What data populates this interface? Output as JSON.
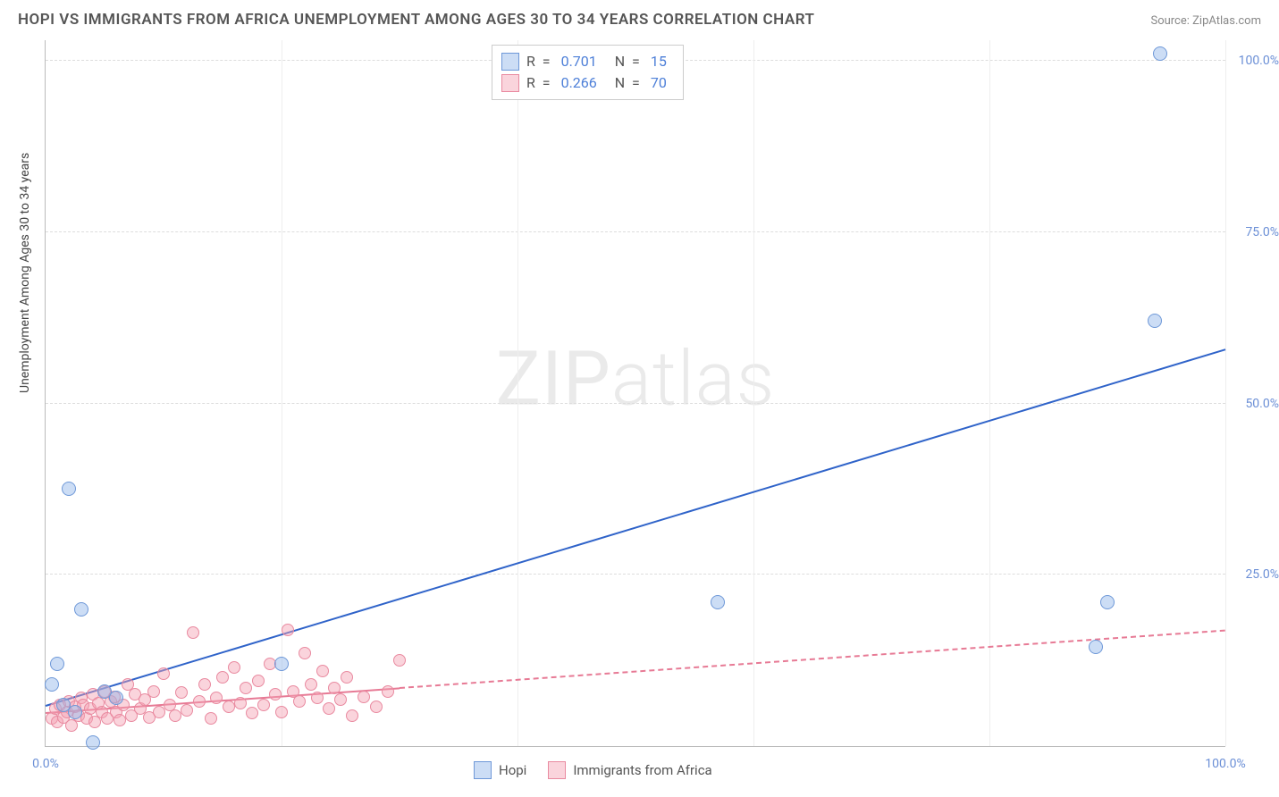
{
  "title": "HOPI VS IMMIGRANTS FROM AFRICA UNEMPLOYMENT AMONG AGES 30 TO 34 YEARS CORRELATION CHART",
  "source": "Source: ZipAtlas.com",
  "ylabel": "Unemployment Among Ages 30 to 34 years",
  "watermark_a": "ZIP",
  "watermark_b": "atlas",
  "chart": {
    "type": "scatter",
    "xlim": [
      0,
      100
    ],
    "ylim": [
      0,
      103
    ],
    "x_ticks": [
      0,
      20,
      40,
      60,
      80,
      100
    ],
    "y_ticks": [
      25,
      50,
      75,
      100
    ],
    "x_tick_labels": {
      "0": "0.0%",
      "100": "100.0%"
    },
    "y_tick_labels": {
      "25": "25.0%",
      "50": "50.0%",
      "75": "75.0%",
      "100": "100.0%"
    },
    "background_color": "#ffffff",
    "grid_color": "#dddddd",
    "axis_color": "#bbbbbb",
    "tick_label_color": "#6b8fd6",
    "series": [
      {
        "name": "Hopi",
        "color_fill": "rgba(143,179,232,0.45)",
        "color_stroke": "#6e98d8",
        "marker_radius": 8,
        "R": "0.701",
        "N": "15",
        "trend": {
          "x1": 0,
          "y1": 6,
          "x2": 100,
          "y2": 58,
          "color": "#2f63c9",
          "width": 2.5,
          "dashed": false
        },
        "points": [
          [
            0.5,
            9
          ],
          [
            1,
            12
          ],
          [
            1.5,
            6
          ],
          [
            2,
            37.5
          ],
          [
            2.5,
            5
          ],
          [
            3,
            20
          ],
          [
            4,
            0.5
          ],
          [
            5,
            8
          ],
          [
            6,
            7
          ],
          [
            20,
            12
          ],
          [
            57,
            21
          ],
          [
            89,
            14.5
          ],
          [
            90,
            21
          ],
          [
            94,
            62
          ],
          [
            94.5,
            101
          ]
        ]
      },
      {
        "name": "Immigrants from Africa",
        "color_fill": "rgba(244,160,178,0.45)",
        "color_stroke": "#e98aa0",
        "marker_radius": 7,
        "R": "0.266",
        "N": "70",
        "trend": {
          "x1": 0,
          "y1": 5,
          "x2": 100,
          "y2": 17,
          "color": "#e77a95",
          "width": 2,
          "dashed": true,
          "solid_until_x": 30
        },
        "points": [
          [
            0.5,
            4
          ],
          [
            0.8,
            5.5
          ],
          [
            1,
            3.5
          ],
          [
            1.2,
            6
          ],
          [
            1.5,
            4.2
          ],
          [
            1.8,
            5
          ],
          [
            2,
            6.5
          ],
          [
            2.2,
            3
          ],
          [
            2.5,
            5.8
          ],
          [
            2.8,
            4.5
          ],
          [
            3,
            7
          ],
          [
            3.2,
            6
          ],
          [
            3.5,
            4
          ],
          [
            3.8,
            5.5
          ],
          [
            4,
            7.5
          ],
          [
            4.2,
            3.5
          ],
          [
            4.5,
            6.2
          ],
          [
            4.8,
            5
          ],
          [
            5,
            8
          ],
          [
            5.2,
            4
          ],
          [
            5.5,
            6.5
          ],
          [
            5.8,
            7.2
          ],
          [
            6,
            5
          ],
          [
            6.3,
            3.8
          ],
          [
            6.6,
            6
          ],
          [
            7,
            9
          ],
          [
            7.3,
            4.5
          ],
          [
            7.6,
            7.5
          ],
          [
            8,
            5.5
          ],
          [
            8.4,
            6.8
          ],
          [
            8.8,
            4.2
          ],
          [
            9.2,
            8
          ],
          [
            9.6,
            5
          ],
          [
            10,
            10.5
          ],
          [
            10.5,
            6
          ],
          [
            11,
            4.5
          ],
          [
            11.5,
            7.8
          ],
          [
            12,
            5.2
          ],
          [
            12.5,
            16.5
          ],
          [
            13,
            6.5
          ],
          [
            13.5,
            9
          ],
          [
            14,
            4
          ],
          [
            14.5,
            7
          ],
          [
            15,
            10
          ],
          [
            15.5,
            5.8
          ],
          [
            16,
            11.5
          ],
          [
            16.5,
            6.2
          ],
          [
            17,
            8.5
          ],
          [
            17.5,
            4.8
          ],
          [
            18,
            9.5
          ],
          [
            18.5,
            6
          ],
          [
            19,
            12
          ],
          [
            19.5,
            7.5
          ],
          [
            20,
            5
          ],
          [
            20.5,
            17
          ],
          [
            21,
            8
          ],
          [
            21.5,
            6.5
          ],
          [
            22,
            13.5
          ],
          [
            22.5,
            9
          ],
          [
            23,
            7
          ],
          [
            23.5,
            11
          ],
          [
            24,
            5.5
          ],
          [
            24.5,
            8.5
          ],
          [
            25,
            6.8
          ],
          [
            25.5,
            10
          ],
          [
            26,
            4.5
          ],
          [
            27,
            7.2
          ],
          [
            28,
            5.8
          ],
          [
            29,
            8
          ],
          [
            30,
            12.5
          ]
        ]
      }
    ]
  },
  "legend": {
    "corr_label_R": "R  =",
    "corr_label_N": "N  =",
    "series_labels": [
      "Hopi",
      "Immigrants from Africa"
    ]
  }
}
